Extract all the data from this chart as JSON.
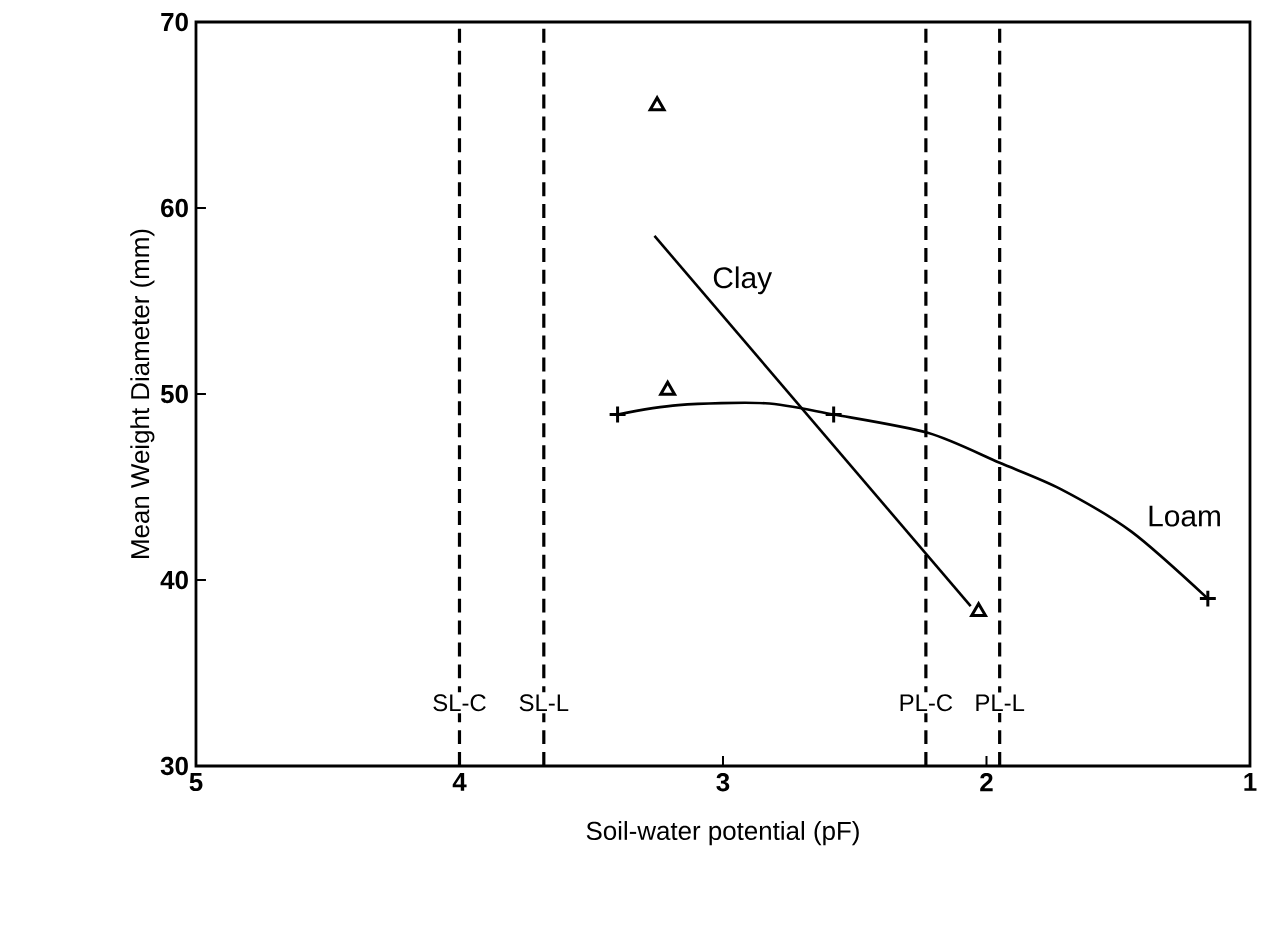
{
  "chart_data": {
    "type": "scatter",
    "xlabel": "Soil-water potential (pF)",
    "ylabel": "Mean Weight Diameter (mm)",
    "xlim": [
      5,
      1
    ],
    "ylim": [
      30,
      70
    ],
    "xticks": [
      5,
      4,
      3,
      2,
      1
    ],
    "yticks": [
      30,
      40,
      50,
      60,
      70
    ],
    "grid": false,
    "series": [
      {
        "marker": "triangle",
        "color": "#000000",
        "x": [
          3.25,
          3.21,
          2.03
        ],
        "values": [
          65.5,
          50.2,
          38.3
        ]
      },
      {
        "type": "line",
        "name": "Clay",
        "marker": "none",
        "color": "#000000",
        "x": [
          3.26,
          2.06
        ],
        "values": [
          58.5,
          38.6
        ]
      },
      {
        "marker": "cross",
        "color": "#000000",
        "x": [
          3.4,
          2.58,
          1.16
        ],
        "values": [
          48.9,
          48.9,
          39.0
        ]
      },
      {
        "type": "line",
        "name": "Loam",
        "marker": "none",
        "color": "#000000",
        "x": [
          3.4,
          3.17,
          2.84,
          2.58,
          2.22,
          1.95,
          1.72,
          1.45,
          1.16
        ],
        "values": [
          48.9,
          49.4,
          49.5,
          48.9,
          47.9,
          46.3,
          44.9,
          42.6,
          39.0
        ]
      }
    ],
    "ref_lines": [
      {
        "axis": "x",
        "value": 4.0,
        "label": "SL-C",
        "line_style": "dashed"
      },
      {
        "axis": "x",
        "value": 3.68,
        "label": "SL-L",
        "line_style": "dashed"
      },
      {
        "axis": "x",
        "value": 2.23,
        "label": "PL-C",
        "line_style": "dashed"
      },
      {
        "axis": "x",
        "value": 1.95,
        "label": "PL-L",
        "line_style": "dashed"
      }
    ]
  }
}
